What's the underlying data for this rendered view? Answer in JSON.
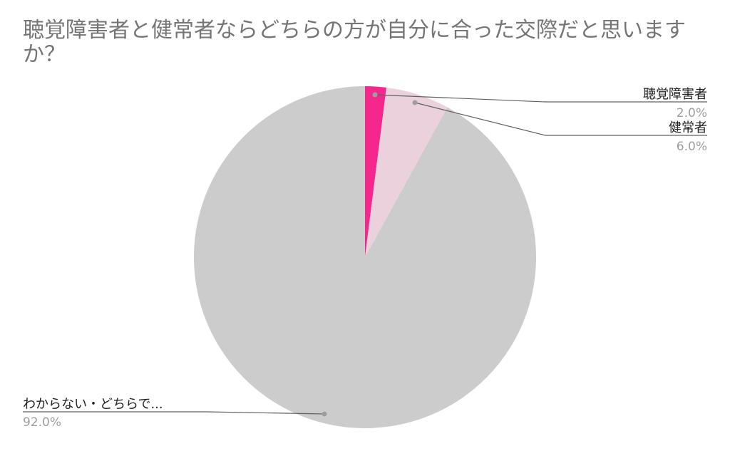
{
  "chart_data": {
    "type": "pie",
    "title": "聴覚障害者と健常者ならどちらの方が自分に合った交際だと思いますか？",
    "slices": [
      {
        "label": "聴覚障害者",
        "value": 2.0,
        "display": "2.0%",
        "color": "#f4288c"
      },
      {
        "label": "健常者",
        "value": 6.0,
        "display": "6.0%",
        "color": "#ead1dc"
      },
      {
        "label": "わからない・どちらで...",
        "value": 92.0,
        "display": "92.0%",
        "color": "#cccccc"
      }
    ],
    "start_angle": "12 o'clock",
    "direction": "clockwise",
    "legend": "leader-line labels"
  }
}
